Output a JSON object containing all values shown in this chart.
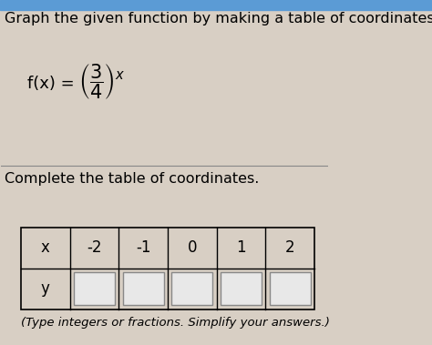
{
  "title_text": "Graph the given function by making a table of coordinates.",
  "section2_text": "Complete the table of coordinates.",
  "x_values": [
    "x",
    "-2",
    "-1",
    "0",
    "1",
    "2"
  ],
  "y_label": "y",
  "note_text": "(Type integers or fractions. Simplify your answers.)",
  "bg_color": "#d8cfc4",
  "top_bar_color": "#5b9bd5",
  "text_color": "#000000",
  "box_edge_color": "#888888",
  "box_face_color": "#e8e8e8",
  "divider_color": "#888888",
  "title_fontsize": 11.5,
  "body_fontsize": 12,
  "note_fontsize": 9.5
}
